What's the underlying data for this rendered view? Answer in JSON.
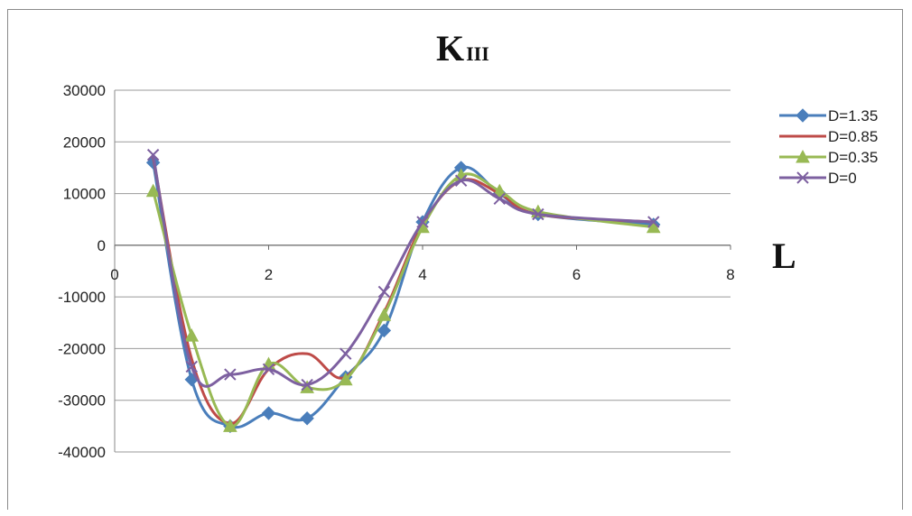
{
  "chart_data": {
    "type": "line",
    "title_main": "K",
    "title_sub": "III",
    "xlabel": "L",
    "ylabel": "",
    "xlim": [
      0,
      8
    ],
    "ylim": [
      -40000,
      30000
    ],
    "x_ticks": [
      0,
      2,
      4,
      6,
      8
    ],
    "y_ticks": [
      30000,
      20000,
      10000,
      0,
      -10000,
      -20000,
      -30000,
      -40000
    ],
    "grid": true,
    "legend_position": "right",
    "series": [
      {
        "name": "D=1.35",
        "color": "#4a7ebb",
        "marker": "diamond",
        "x": [
          0.5,
          1,
          1.5,
          2,
          2.5,
          3,
          3.5,
          4,
          4.5,
          5,
          5.5,
          7
        ],
        "y": [
          16000,
          -26000,
          -35000,
          -32500,
          -33500,
          -25500,
          -16500,
          4500,
          15000,
          10000,
          6000,
          4000
        ]
      },
      {
        "name": "D=0.85",
        "color": "#be4b48",
        "marker": "none",
        "x": [
          0.5,
          1,
          1.5,
          2,
          2.5,
          3,
          3.5,
          4,
          4.5,
          5,
          5.5,
          7
        ],
        "y": [
          17000,
          -22000,
          -34500,
          -24000,
          -21000,
          -25500,
          -13000,
          4000,
          12500,
          10000,
          6000,
          4500
        ]
      },
      {
        "name": "D=0.35",
        "color": "#98b954",
        "marker": "triangle",
        "x": [
          0.5,
          1,
          1.5,
          2,
          2.5,
          3,
          3.5,
          4,
          4.5,
          5,
          5.5,
          7
        ],
        "y": [
          10500,
          -17500,
          -35000,
          -23000,
          -27500,
          -26000,
          -13500,
          3500,
          13500,
          10500,
          6500,
          3500
        ]
      },
      {
        "name": "D=0",
        "color": "#7d60a0",
        "marker": "x",
        "x": [
          0.5,
          1,
          1.5,
          2,
          2.5,
          3,
          3.5,
          4,
          4.5,
          5,
          5.5,
          7
        ],
        "y": [
          17500,
          -23500,
          -25000,
          -24000,
          -27000,
          -21000,
          -9000,
          4500,
          12500,
          9000,
          6000,
          4500
        ]
      }
    ]
  }
}
